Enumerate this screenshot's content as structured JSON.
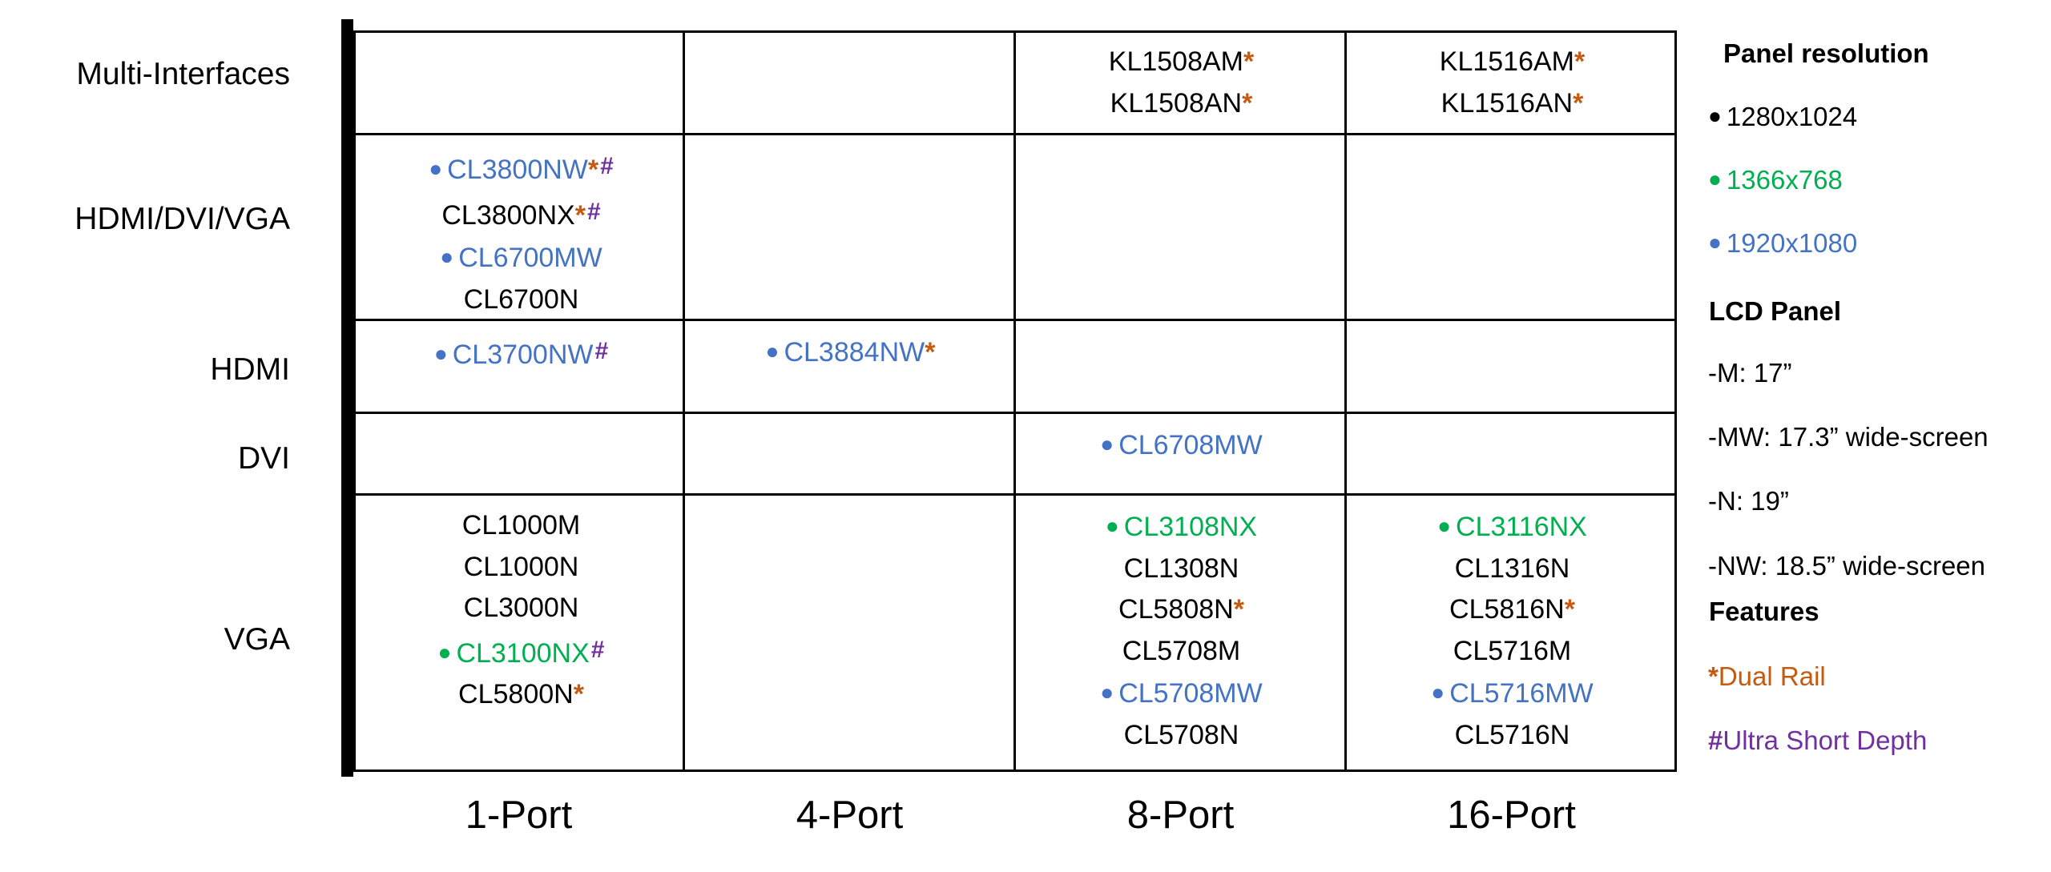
{
  "colors": {
    "black": "#000000",
    "green": "#00b050",
    "blue": "#4472c4",
    "star_orange": "#c55a11",
    "hash_purple": "#7030a0"
  },
  "rows": [
    "Multi-Interfaces",
    "HDMI/DVI/VGA",
    "HDMI",
    "DVI",
    "VGA"
  ],
  "columns": [
    "1-Port",
    "4-Port",
    "8-Port",
    "16-Port"
  ],
  "cells": {
    "multi_8": [
      {
        "name": "KL1508AM",
        "color": "black",
        "star": true
      },
      {
        "name": "KL1508AN",
        "color": "black",
        "star": true
      }
    ],
    "multi_16": [
      {
        "name": "KL1516AM",
        "color": "black",
        "star": true
      },
      {
        "name": "KL1516AN",
        "color": "black",
        "star": true
      }
    ],
    "hdv_1": [
      {
        "name": "CL3800NW",
        "color": "blue",
        "dot": true,
        "star": true,
        "hash": true
      },
      {
        "name": "CL3800NX",
        "color": "black",
        "star": true,
        "hash": true
      },
      {
        "name": "CL6700MW",
        "color": "blue",
        "dot": true
      },
      {
        "name": "CL6700N",
        "color": "black"
      }
    ],
    "hdmi_1": [
      {
        "name": "CL3700NW",
        "color": "blue",
        "dot": true,
        "hash": true
      }
    ],
    "hdmi_4": [
      {
        "name": "CL3884NW",
        "color": "blue",
        "dot": true,
        "star": true
      }
    ],
    "dvi_8": [
      {
        "name": "CL6708MW",
        "color": "blue",
        "dot": true
      }
    ],
    "vga_1": [
      {
        "name": "CL1000M",
        "color": "black"
      },
      {
        "name": "CL1000N",
        "color": "black"
      },
      {
        "name": "CL3000N",
        "color": "black"
      },
      {
        "name": "CL3100NX",
        "color": "green",
        "dot": true,
        "hash": true
      },
      {
        "name": "CL5800N",
        "color": "black",
        "star": true
      }
    ],
    "vga_8": [
      {
        "name": "CL3108NX",
        "color": "green",
        "dot": true
      },
      {
        "name": "CL1308N",
        "color": "black"
      },
      {
        "name": "CL5808N",
        "color": "black",
        "star": true
      },
      {
        "name": "CL5708M",
        "color": "black"
      },
      {
        "name": "CL5708MW",
        "color": "blue",
        "dot": true
      },
      {
        "name": "CL5708N",
        "color": "black"
      }
    ],
    "vga_16": [
      {
        "name": "CL3116NX",
        "color": "green",
        "dot": true
      },
      {
        "name": "CL1316N",
        "color": "black"
      },
      {
        "name": "CL5816N",
        "color": "black",
        "star": true
      },
      {
        "name": "CL5716M",
        "color": "black"
      },
      {
        "name": "CL5716MW",
        "color": "blue",
        "dot": true
      },
      {
        "name": "CL5716N",
        "color": "black"
      }
    ]
  },
  "legend": {
    "panel_resolution_title": "Panel resolution",
    "res_1280": "1280x1024",
    "res_1366": "1366x768",
    "res_1920": "1920x1080",
    "lcd_panel_title": "LCD Panel",
    "lcd_m": "-M: 17”",
    "lcd_mw": "-MW: 17.3” wide-screen",
    "lcd_n": "-N: 19”",
    "lcd_nw": "-NW: 18.5” wide-screen",
    "features_title": "Features",
    "dual_rail_symbol": "*",
    "dual_rail_label": "Dual Rail",
    "ultra_short_symbol": "#",
    "ultra_short_label": "Ultra Short Depth"
  }
}
